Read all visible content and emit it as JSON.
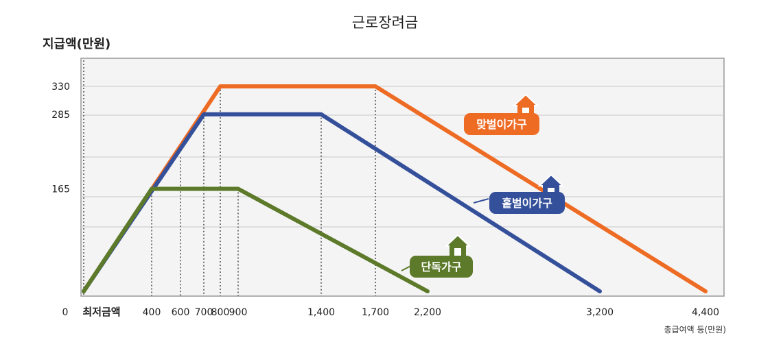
{
  "chart_data": {
    "type": "line",
    "title": "근로장려금",
    "ylabel": "지급액(만원)",
    "xlabel": "총급여액 등(만원)",
    "origin_label": "0",
    "x_start_label": "최저금액",
    "x_ticks": [
      400,
      600,
      700,
      800,
      900,
      1400,
      1700,
      2200,
      3200,
      4400
    ],
    "x_tick_labels": [
      "400",
      "600",
      "700",
      "800",
      "900",
      "1,400",
      "1,700",
      "2,200",
      "3,200",
      "4,400"
    ],
    "y_ticks": [
      165,
      285,
      330
    ],
    "y_tick_labels": [
      "165",
      "285",
      "330"
    ],
    "xlim": [
      0,
      4400
    ],
    "ylim": [
      0,
      330
    ],
    "grid": true,
    "series": [
      {
        "name": "맞벌이가구",
        "color": "#ee6b24",
        "label_color": "#ee6b24",
        "icon": "house-icon",
        "points": [
          [
            0,
            0
          ],
          [
            800,
            330
          ],
          [
            1700,
            330
          ],
          [
            4400,
            0
          ]
        ]
      },
      {
        "name": "홑벌이가구",
        "color": "#35509a",
        "label_color": "#35509a",
        "icon": "house-icon",
        "points": [
          [
            0,
            0
          ],
          [
            700,
            285
          ],
          [
            1400,
            285
          ],
          [
            3200,
            0
          ]
        ]
      },
      {
        "name": "단독가구",
        "color": "#5c7a2a",
        "label_color": "#5c7a2a",
        "icon": "house-icon",
        "points": [
          [
            0,
            0
          ],
          [
            400,
            165
          ],
          [
            900,
            165
          ],
          [
            2200,
            0
          ]
        ]
      }
    ]
  }
}
